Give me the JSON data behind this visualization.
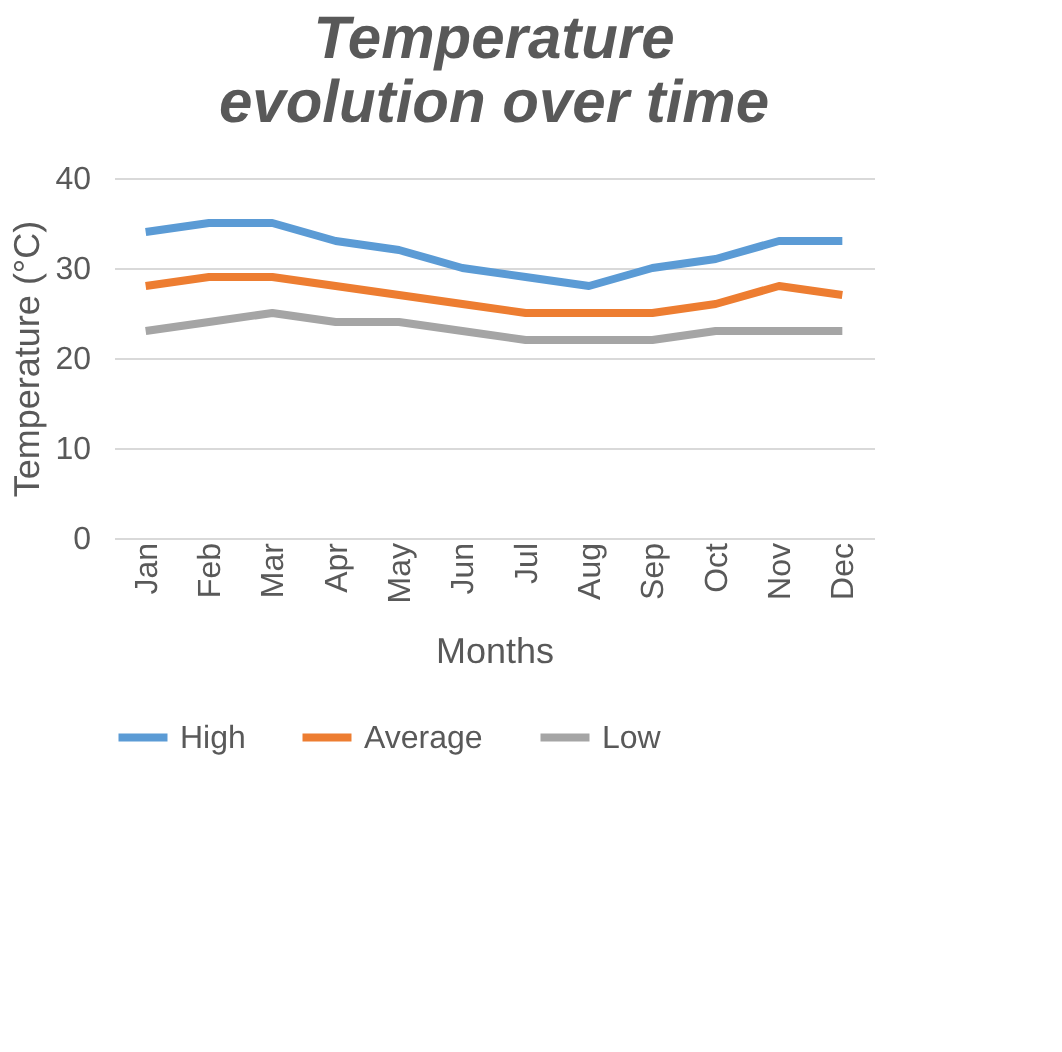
{
  "chart_data": {
    "type": "line",
    "title": [
      "Temperature",
      "evolution over time"
    ],
    "xlabel": "Months",
    "ylabel": "Temperature (°C)",
    "categories": [
      "Jan",
      "Feb",
      "Mar",
      "Apr",
      "May",
      "Jun",
      "Jul",
      "Aug",
      "Sep",
      "Oct",
      "Nov",
      "Dec"
    ],
    "series": [
      {
        "name": "High",
        "color": "#5b9bd5",
        "values": [
          34,
          35,
          35,
          33,
          32,
          30,
          29,
          28,
          30,
          31,
          33,
          33
        ]
      },
      {
        "name": "Average",
        "color": "#ed7d31",
        "values": [
          28,
          29,
          29,
          28,
          27,
          26,
          25,
          25,
          25,
          26,
          28,
          27
        ]
      },
      {
        "name": "Low",
        "color": "#a5a5a5",
        "values": [
          23,
          24,
          25,
          24,
          24,
          23,
          22,
          22,
          22,
          23,
          23,
          23
        ]
      }
    ],
    "ylim": [
      0,
      40
    ],
    "yticks": [
      0,
      10,
      20,
      30,
      40
    ],
    "grid": "y",
    "legend": "bottom",
    "marker": "none",
    "line_style": "solid"
  }
}
